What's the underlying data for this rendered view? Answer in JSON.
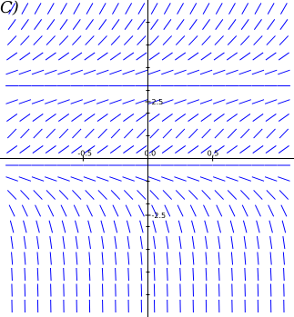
{
  "figure": {
    "corner_label": "C)"
  },
  "chart_data": {
    "type": "slope_field",
    "x_range": [
      -1.1,
      1.1
    ],
    "y_range": [
      -6.9,
      6.9
    ],
    "x_ticks": [
      {
        "value": -0.5,
        "label": "-0.5"
      },
      {
        "value": 0.5,
        "label": "0.5"
      }
    ],
    "y_ticks": [
      {
        "value": 2.5,
        "label": "2.5"
      },
      {
        "value": -2.5,
        "label": "-2.5"
      }
    ],
    "origin_label": "0.0",
    "grid": false,
    "axis_color": "#000000",
    "segment_color": "#0000ff",
    "slope_description": "slope depends on y only; horizontal segments near y = 3.2 and y = 0, steep near bottom",
    "rows": [
      {
        "y": 6.6,
        "slope": 10
      },
      {
        "y": 5.9,
        "slope": 8
      },
      {
        "y": 5.2,
        "slope": 6
      },
      {
        "y": 4.5,
        "slope": 4
      },
      {
        "y": 3.8,
        "slope": 2
      },
      {
        "y": 3.2,
        "slope": 0
      },
      {
        "y": 2.5,
        "slope": 2
      },
      {
        "y": 1.8,
        "slope": 4
      },
      {
        "y": 1.1,
        "slope": 6
      },
      {
        "y": 0.4,
        "slope": 4
      },
      {
        "y": -0.3,
        "slope": 0
      },
      {
        "y": -0.9,
        "slope": -2
      },
      {
        "y": -1.6,
        "slope": -6
      },
      {
        "y": -2.3,
        "slope": -12
      },
      {
        "y": -3.0,
        "slope": -22
      },
      {
        "y": -3.7,
        "slope": -40
      },
      {
        "y": -4.4,
        "slope": -70
      },
      {
        "y": -5.1,
        "slope": -120
      },
      {
        "y": -5.8,
        "slope": -200
      },
      {
        "y": -6.5,
        "slope": -300
      }
    ],
    "columns": [
      -1.05,
      -0.95,
      -0.85,
      -0.75,
      -0.65,
      -0.55,
      -0.45,
      -0.35,
      -0.25,
      -0.15,
      -0.05,
      0.05,
      0.15,
      0.25,
      0.35,
      0.45,
      0.55,
      0.65,
      0.75,
      0.85,
      0.95,
      1.05
    ]
  }
}
